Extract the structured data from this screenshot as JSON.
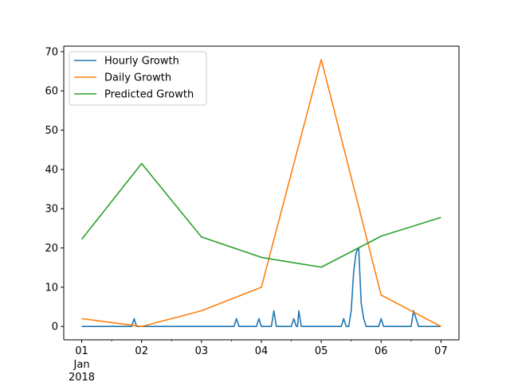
{
  "chart_data": {
    "type": "line",
    "title": "",
    "xlabel": "",
    "ylabel": "",
    "x_ticks": [
      "01",
      "02",
      "03",
      "04",
      "05",
      "06",
      "07"
    ],
    "x_tick_sub": [
      "Jan",
      "2018"
    ],
    "ylim": [
      -3.4,
      71.4
    ],
    "y_ticks": [
      0,
      10,
      20,
      30,
      40,
      50,
      60,
      70
    ],
    "grid": false,
    "legend_position": "upper-left",
    "series": [
      {
        "name": "Hourly Growth",
        "color": "#1f77b4",
        "points": [
          [
            "2018-01-01 00:00",
            0
          ],
          [
            "2018-01-01 20:00",
            0
          ],
          [
            "2018-01-01 21:00",
            2
          ],
          [
            "2018-01-01 22:00",
            0
          ],
          [
            "2018-01-03 13:00",
            0
          ],
          [
            "2018-01-03 14:00",
            2
          ],
          [
            "2018-01-03 15:00",
            0
          ],
          [
            "2018-01-03 22:00",
            0
          ],
          [
            "2018-01-03 23:00",
            2
          ],
          [
            "2018-01-04 00:00",
            0
          ],
          [
            "2018-01-04 04:00",
            0
          ],
          [
            "2018-01-04 05:00",
            4
          ],
          [
            "2018-01-04 06:00",
            0
          ],
          [
            "2018-01-04 12:00",
            0
          ],
          [
            "2018-01-04 13:00",
            2
          ],
          [
            "2018-01-04 14:00",
            0
          ],
          [
            "2018-01-04 14:30",
            0
          ],
          [
            "2018-01-04 15:00",
            4
          ],
          [
            "2018-01-04 16:00",
            0
          ],
          [
            "2018-01-05 08:00",
            0
          ],
          [
            "2018-01-05 09:00",
            2
          ],
          [
            "2018-01-05 10:00",
            0
          ],
          [
            "2018-01-05 11:00",
            0
          ],
          [
            "2018-01-05 12:00",
            4
          ],
          [
            "2018-01-05 13:00",
            14
          ],
          [
            "2018-01-05 14:00",
            19
          ],
          [
            "2018-01-05 15:00",
            20
          ],
          [
            "2018-01-05 16:00",
            6
          ],
          [
            "2018-01-05 17:00",
            2
          ],
          [
            "2018-01-05 18:00",
            0
          ],
          [
            "2018-01-05 23:00",
            0
          ],
          [
            "2018-01-06 00:00",
            2
          ],
          [
            "2018-01-06 01:00",
            0
          ],
          [
            "2018-01-06 12:00",
            0
          ],
          [
            "2018-01-06 13:00",
            4
          ],
          [
            "2018-01-06 15:00",
            0
          ],
          [
            "2018-01-07 00:00",
            0
          ]
        ]
      },
      {
        "name": "Daily Growth",
        "color": "#ff7f0e",
        "points": [
          [
            "2018-01-01",
            2
          ],
          [
            "2018-01-02",
            0
          ],
          [
            "2018-01-03",
            4
          ],
          [
            "2018-01-04",
            10
          ],
          [
            "2018-01-05",
            68
          ],
          [
            "2018-01-06",
            8
          ],
          [
            "2018-01-07",
            0
          ]
        ]
      },
      {
        "name": "Predicted Growth",
        "color": "#2ca02c",
        "points": [
          [
            "2018-01-01",
            22.2
          ],
          [
            "2018-01-02",
            41.5
          ],
          [
            "2018-01-03",
            22.8
          ],
          [
            "2018-01-04",
            17.6
          ],
          [
            "2018-01-05",
            15.1
          ],
          [
            "2018-01-06",
            23
          ],
          [
            "2018-01-07",
            27.8
          ]
        ]
      }
    ]
  }
}
